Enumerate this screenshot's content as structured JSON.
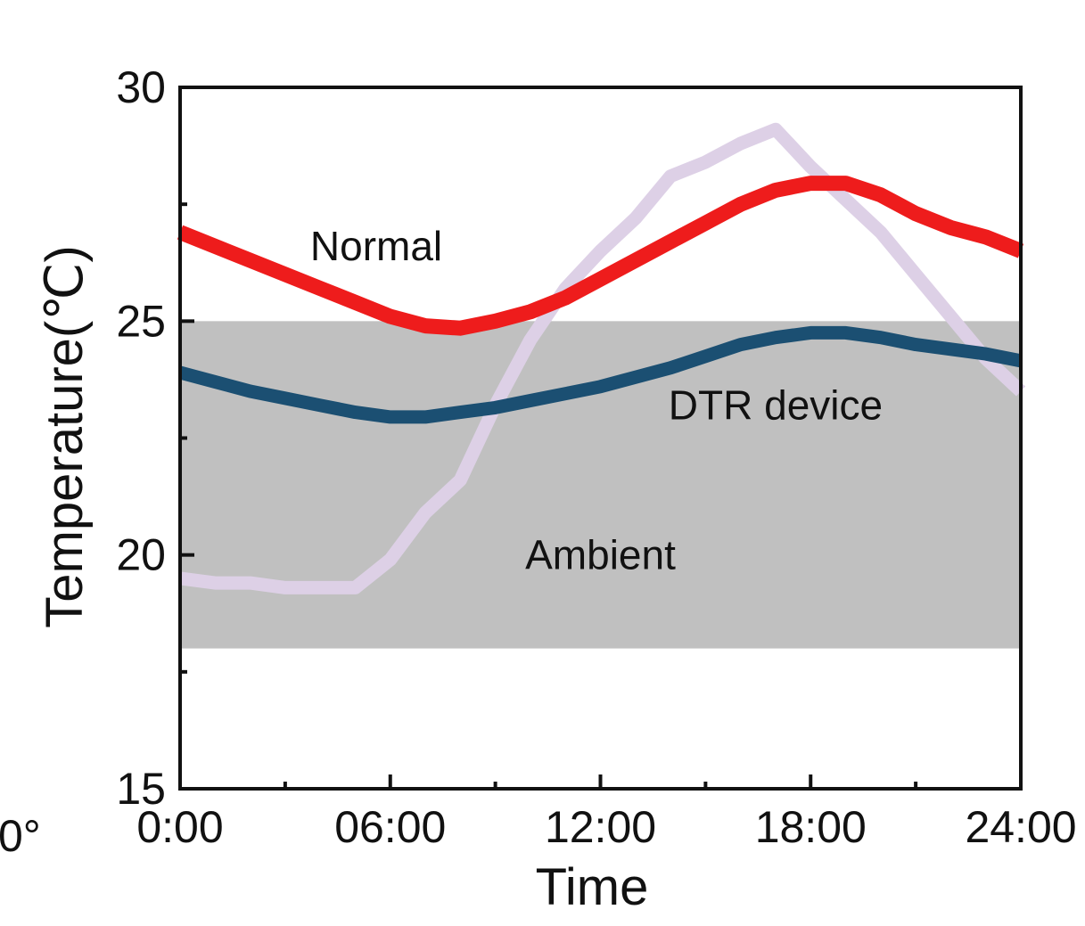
{
  "chart_data": {
    "type": "line",
    "title": "",
    "xlabel": "Time",
    "ylabel": "Temperature(℃)",
    "xlim": [
      0,
      24
    ],
    "ylim": [
      15,
      30
    ],
    "x_ticks": [
      {
        "value": 0,
        "label": "0:00"
      },
      {
        "value": 6,
        "label": "06:00"
      },
      {
        "value": 12,
        "label": "12:00"
      },
      {
        "value": 18,
        "label": "18:00"
      },
      {
        "value": 24,
        "label": "24:00"
      }
    ],
    "x_minor_ticks": [
      3,
      9,
      15,
      21
    ],
    "y_ticks": [
      {
        "value": 15,
        "label": "15"
      },
      {
        "value": 20,
        "label": "20"
      },
      {
        "value": 25,
        "label": "25"
      },
      {
        "value": 30,
        "label": "30"
      }
    ],
    "y_minor_ticks": [
      17.5,
      22.5,
      27.5
    ],
    "shaded_band": {
      "y_from": 18,
      "y_to": 25,
      "color": "#c0c0c0"
    },
    "grid": false,
    "edge_fragment": "0°",
    "series": [
      {
        "name": "Ambient",
        "color": "#ddd0e6",
        "x": [
          0,
          1,
          2,
          3,
          4,
          5,
          6,
          7,
          8,
          9,
          10,
          11,
          12,
          13,
          14,
          15,
          16,
          17,
          18,
          19,
          20,
          21,
          22,
          23,
          24
        ],
        "y": [
          19.5,
          19.4,
          19.4,
          19.3,
          19.3,
          19.3,
          19.9,
          20.9,
          21.6,
          23.2,
          24.6,
          25.7,
          26.5,
          27.2,
          28.1,
          28.4,
          28.8,
          29.1,
          28.3,
          27.6,
          26.9,
          26.0,
          25.1,
          24.2,
          23.5
        ],
        "label_at": [
          12,
          19.7
        ]
      },
      {
        "name": "Normal",
        "color": "#ee1c1c",
        "x": [
          0,
          1,
          2,
          3,
          4,
          5,
          6,
          7,
          8,
          9,
          10,
          11,
          12,
          13,
          14,
          15,
          16,
          17,
          18,
          19,
          20,
          21,
          22,
          23,
          24
        ],
        "y": [
          26.9,
          26.6,
          26.3,
          26.0,
          25.7,
          25.4,
          25.1,
          24.9,
          24.85,
          25.0,
          25.2,
          25.5,
          25.9,
          26.3,
          26.7,
          27.1,
          27.5,
          27.8,
          27.95,
          27.95,
          27.7,
          27.3,
          27.0,
          26.8,
          26.5
        ],
        "label_at": [
          5.6,
          26.3
        ]
      },
      {
        "name": "DTR device",
        "color": "#1b4f72",
        "x": [
          0,
          1,
          2,
          3,
          4,
          5,
          6,
          7,
          8,
          9,
          10,
          11,
          12,
          13,
          14,
          15,
          16,
          17,
          18,
          19,
          20,
          21,
          22,
          23,
          24
        ],
        "y": [
          23.9,
          23.7,
          23.5,
          23.35,
          23.2,
          23.05,
          22.95,
          22.95,
          23.05,
          23.15,
          23.3,
          23.45,
          23.6,
          23.8,
          24.0,
          24.25,
          24.5,
          24.65,
          24.75,
          24.75,
          24.65,
          24.5,
          24.4,
          24.3,
          24.15
        ],
        "label_at": [
          17.0,
          22.9
        ]
      }
    ]
  }
}
